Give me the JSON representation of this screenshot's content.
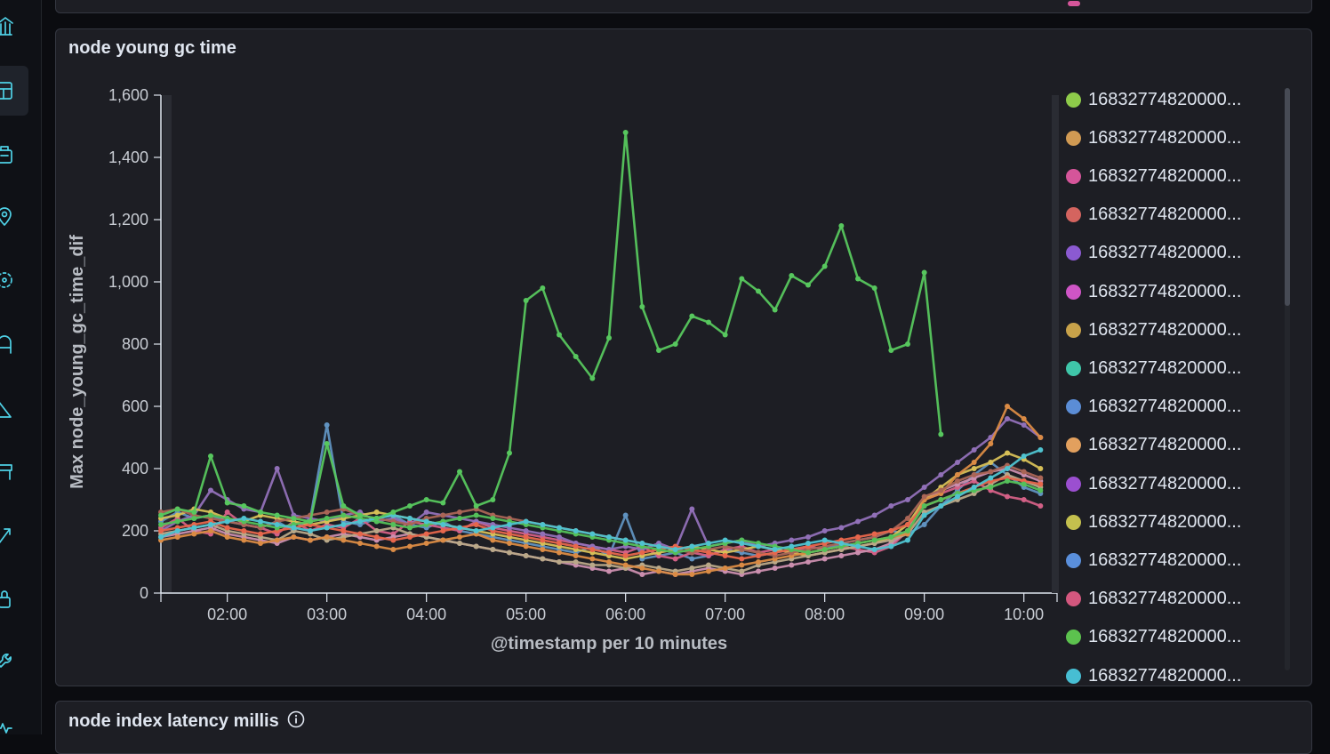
{
  "nav": {
    "items": [
      {
        "icon": "bank-icon"
      },
      {
        "icon": "dashboard-icon"
      },
      {
        "icon": "building-icon"
      },
      {
        "icon": "map-pin-icon"
      },
      {
        "icon": "ml-icon"
      },
      {
        "icon": "graph-icon"
      },
      {
        "icon": "canvas-icon"
      },
      {
        "icon": "log-icon"
      },
      {
        "icon": "metrics-icon"
      },
      {
        "icon": "uptime-icon"
      },
      {
        "icon": "lock-icon"
      },
      {
        "icon": "wrench-icon"
      },
      {
        "icon": "heartbeat-icon"
      }
    ]
  },
  "panels": {
    "young_gc": {
      "title": "node young gc time"
    },
    "index_latency": {
      "title": "node index latency millis"
    }
  },
  "colors": {
    "series": [
      "#54b399",
      "#6092c0",
      "#d36086",
      "#9170b8",
      "#ca8eae",
      "#d6bf57",
      "#b9a888",
      "#da8b45",
      "#aa6556",
      "#e7664c",
      "#54c05a",
      "#4fc3d0"
    ],
    "legend": [
      "#8ecb4a",
      "#d09a53",
      "#d5559a",
      "#d4645f",
      "#8b5ad1",
      "#cf55c6",
      "#c8a24a",
      "#3fc6a9",
      "#5b8dd6",
      "#e2a05e",
      "#9b4fd0",
      "#c4c04e",
      "#5a8fdb",
      "#d3577e",
      "#5cc24e",
      "#47bed3"
    ]
  },
  "legend": {
    "items": [
      "16832774820000...",
      "16832774820000...",
      "16832774820000...",
      "16832774820000...",
      "16832774820000...",
      "16832774820000...",
      "16832774820000...",
      "16832774820000...",
      "16832774820000...",
      "16832774820000...",
      "16832774820000...",
      "16832774820000...",
      "16832774820000...",
      "16832774820000...",
      "16832774820000...",
      "16832774820000..."
    ]
  },
  "chart_data": {
    "type": "line",
    "title": "node young gc time",
    "xlabel": "@timestamp per 10 minutes",
    "ylabel": "Max node_young_gc_time_dif",
    "ylim": [
      0,
      1600
    ],
    "xlim": [
      "01:20",
      "10:20"
    ],
    "yticks": [
      "0",
      "200",
      "400",
      "600",
      "800",
      "1,000",
      "1,200",
      "1,400",
      "1,600"
    ],
    "xticks": [
      "02:00",
      "03:00",
      "04:00",
      "05:00",
      "06:00",
      "07:00",
      "08:00",
      "09:00",
      "10:00"
    ],
    "x": [
      "01:20",
      "01:30",
      "01:40",
      "01:50",
      "02:00",
      "02:10",
      "02:20",
      "02:30",
      "02:40",
      "02:50",
      "03:00",
      "03:10",
      "03:20",
      "03:30",
      "03:40",
      "03:50",
      "04:00",
      "04:10",
      "04:20",
      "04:30",
      "04:40",
      "04:50",
      "05:00",
      "05:10",
      "05:20",
      "05:30",
      "05:40",
      "05:50",
      "06:00",
      "06:10",
      "06:20",
      "06:30",
      "06:40",
      "06:50",
      "07:00",
      "07:10",
      "07:20",
      "07:30",
      "07:40",
      "07:50",
      "08:00",
      "08:10",
      "08:20",
      "08:30",
      "08:40",
      "08:50",
      "09:00",
      "09:10",
      "09:20",
      "09:30",
      "09:40",
      "09:50",
      "10:00",
      "10:10"
    ],
    "series": [
      {
        "values": [
          250,
          270,
          260,
          440,
          290,
          280,
          260,
          250,
          240,
          230,
          480,
          280,
          250,
          240,
          260,
          280,
          300,
          290,
          390,
          280,
          300,
          450,
          940,
          980,
          830,
          760,
          690,
          820,
          1480,
          920,
          780,
          800,
          890,
          870,
          830,
          1010,
          970,
          910,
          1020,
          990,
          1050,
          1180,
          1010,
          980,
          780,
          800,
          1030,
          510,
          null,
          null,
          null,
          null,
          null,
          null
        ]
      },
      {
        "values": [
          230,
          260,
          240,
          250,
          230,
          220,
          210,
          230,
          200,
          240,
          540,
          230,
          220,
          240,
          250,
          220,
          210,
          230,
          200,
          190,
          180,
          170,
          160,
          150,
          140,
          130,
          150,
          120,
          250,
          110,
          120,
          130,
          110,
          120,
          140,
          130,
          120,
          130,
          140,
          150,
          140,
          160,
          170,
          180,
          200,
          190,
          220,
          280,
          330,
          380,
          420,
          380,
          340,
          320
        ]
      },
      {
        "values": [
          210,
          240,
          200,
          190,
          260,
          220,
          210,
          190,
          230,
          200,
          220,
          210,
          240,
          200,
          190,
          230,
          220,
          210,
          200,
          230,
          210,
          200,
          190,
          180,
          170,
          160,
          150,
          140,
          130,
          150,
          120,
          110,
          130,
          120,
          140,
          150,
          130,
          140,
          130,
          150,
          140,
          150,
          140,
          130,
          150,
          200,
          300,
          320,
          340,
          360,
          330,
          310,
          300,
          280
        ]
      },
      {
        "values": [
          200,
          230,
          250,
          330,
          300,
          270,
          260,
          400,
          250,
          240,
          230,
          250,
          260,
          230,
          240,
          220,
          260,
          250,
          240,
          230,
          220,
          210,
          200,
          190,
          180,
          160,
          150,
          140,
          150,
          140,
          160,
          140,
          270,
          150,
          160,
          170,
          150,
          160,
          170,
          180,
          200,
          210,
          230,
          250,
          280,
          300,
          340,
          380,
          420,
          460,
          500,
          560,
          540,
          500
        ]
      },
      {
        "values": [
          180,
          190,
          200,
          210,
          190,
          180,
          170,
          160,
          180,
          170,
          180,
          190,
          180,
          170,
          180,
          190,
          180,
          170,
          160,
          150,
          140,
          130,
          120,
          110,
          100,
          90,
          80,
          70,
          80,
          60,
          70,
          60,
          70,
          80,
          70,
          60,
          70,
          80,
          90,
          100,
          110,
          120,
          130,
          140,
          160,
          200,
          300,
          330,
          350,
          370,
          390,
          400,
          380,
          360
        ]
      },
      {
        "values": [
          240,
          250,
          270,
          260,
          240,
          230,
          250,
          240,
          230,
          220,
          230,
          240,
          250,
          260,
          250,
          240,
          230,
          220,
          210,
          200,
          190,
          180,
          170,
          160,
          150,
          140,
          130,
          120,
          110,
          120,
          130,
          140,
          150,
          140,
          130,
          140,
          150,
          140,
          130,
          120,
          130,
          140,
          150,
          160,
          180,
          220,
          300,
          340,
          380,
          400,
          420,
          450,
          430,
          400
        ]
      },
      {
        "values": [
          190,
          200,
          210,
          220,
          200,
          190,
          180,
          170,
          200,
          190,
          170,
          180,
          190,
          200,
          210,
          190,
          180,
          170,
          160,
          150,
          140,
          130,
          120,
          110,
          100,
          100,
          90,
          90,
          80,
          90,
          80,
          70,
          80,
          90,
          80,
          70,
          90,
          100,
          110,
          120,
          130,
          140,
          150,
          160,
          170,
          190,
          260,
          280,
          300,
          320,
          350,
          380,
          360,
          340
        ]
      },
      {
        "values": [
          170,
          180,
          190,
          200,
          180,
          170,
          160,
          170,
          180,
          170,
          180,
          170,
          160,
          150,
          140,
          150,
          160,
          170,
          180,
          190,
          170,
          160,
          150,
          140,
          130,
          120,
          110,
          100,
          90,
          80,
          70,
          60,
          60,
          70,
          80,
          90,
          100,
          110,
          120,
          130,
          140,
          150,
          160,
          170,
          180,
          190,
          300,
          320,
          380,
          420,
          480,
          600,
          560,
          500
        ]
      },
      {
        "values": [
          260,
          270,
          250,
          240,
          230,
          220,
          210,
          230,
          240,
          250,
          260,
          270,
          250,
          240,
          230,
          220,
          240,
          250,
          260,
          270,
          250,
          240,
          230,
          220,
          210,
          200,
          190,
          180,
          170,
          160,
          150,
          140,
          130,
          140,
          150,
          140,
          130,
          120,
          130,
          140,
          150,
          160,
          170,
          180,
          200,
          240,
          310,
          330,
          360,
          380,
          390,
          410,
          390,
          370
        ]
      },
      {
        "values": [
          200,
          210,
          220,
          230,
          210,
          200,
          190,
          200,
          210,
          220,
          210,
          200,
          190,
          180,
          170,
          180,
          190,
          200,
          210,
          220,
          200,
          190,
          180,
          170,
          160,
          150,
          140,
          130,
          120,
          130,
          140,
          150,
          140,
          130,
          120,
          110,
          120,
          130,
          140,
          150,
          160,
          170,
          180,
          190,
          200,
          220,
          280,
          300,
          320,
          340,
          360,
          370,
          360,
          350
        ]
      },
      {
        "values": [
          220,
          230,
          240,
          250,
          240,
          230,
          220,
          210,
          220,
          230,
          240,
          250,
          240,
          230,
          220,
          210,
          220,
          230,
          240,
          250,
          240,
          230,
          220,
          210,
          200,
          190,
          180,
          170,
          160,
          150,
          140,
          130,
          140,
          150,
          160,
          170,
          160,
          150,
          140,
          130,
          140,
          150,
          160,
          170,
          180,
          200,
          280,
          300,
          320,
          330,
          340,
          360,
          350,
          330
        ]
      },
      {
        "values": [
          180,
          200,
          210,
          220,
          230,
          240,
          230,
          220,
          210,
          200,
          210,
          220,
          230,
          240,
          250,
          240,
          230,
          220,
          210,
          200,
          210,
          220,
          230,
          220,
          210,
          200,
          190,
          180,
          170,
          160,
          150,
          140,
          150,
          160,
          170,
          160,
          150,
          140,
          150,
          160,
          170,
          160,
          150,
          140,
          150,
          170,
          250,
          280,
          310,
          340,
          370,
          400,
          440,
          460
        ]
      }
    ]
  }
}
